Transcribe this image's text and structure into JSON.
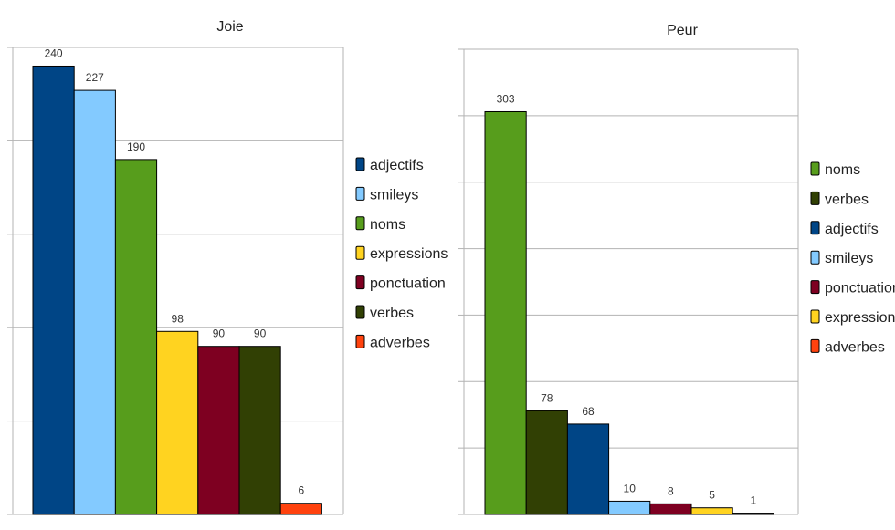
{
  "chart_data": [
    {
      "type": "bar",
      "title": "Joie",
      "categories": [
        "adjectifs",
        "smileys",
        "noms",
        "expressions",
        "ponctuation",
        "verbes",
        "adverbes"
      ],
      "values": [
        240,
        227,
        190,
        98,
        90,
        90,
        6
      ],
      "data_labels": [
        "240",
        "227",
        "190",
        "98",
        "90",
        "90",
        "6"
      ],
      "colors": [
        "#004586",
        "#83caff",
        "#579d1c",
        "#ffd320",
        "#7e0021",
        "#314004",
        "#ff420e"
      ],
      "ylim": [
        0,
        250
      ],
      "grid": true,
      "legend": "right",
      "xlabel": "",
      "ylabel": ""
    },
    {
      "type": "bar",
      "title": "Peur",
      "categories": [
        "noms",
        "verbes",
        "adjectifs",
        "smileys",
        "ponctuation",
        "expressions",
        "adverbes"
      ],
      "values": [
        303,
        78,
        68,
        10,
        8,
        5,
        1
      ],
      "data_labels": [
        "303",
        "78",
        "68",
        "10",
        "8",
        "5",
        "1"
      ],
      "colors": [
        "#579d1c",
        "#314004",
        "#004586",
        "#83caff",
        "#7e0021",
        "#ffd320",
        "#ff420e"
      ],
      "ylim": [
        0,
        350
      ],
      "grid": true,
      "legend": "right",
      "xlabel": "",
      "ylabel": ""
    }
  ]
}
